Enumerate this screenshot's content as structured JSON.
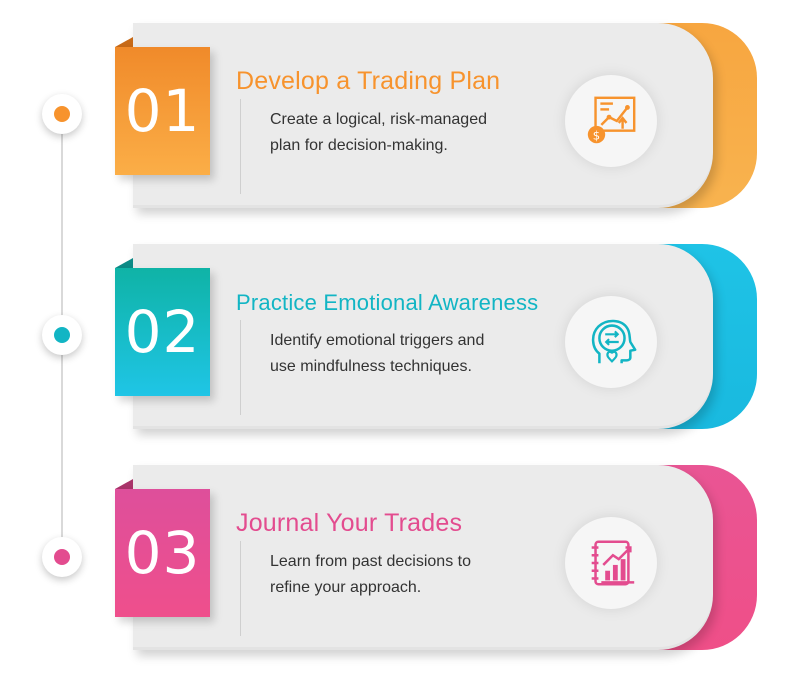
{
  "steps": [
    {
      "number": "01",
      "title": "Develop a Trading Plan",
      "description_line1": "Create a logical, risk-managed",
      "description_line2": "plan for decision-making.",
      "color": "#f7932d",
      "gradient_start": "#f08a2a",
      "gradient_end": "#fbb04a",
      "icon": "trading-plan-chart-icon"
    },
    {
      "number": "02",
      "title": "Practice Emotional Awareness",
      "description_line1": "Identify emotional triggers and",
      "description_line2": "use mindfulness techniques.",
      "color": "#12b5c4",
      "gradient_start": "#0fb3a9",
      "gradient_end": "#1cc3e2",
      "icon": "head-heart-arrows-icon"
    },
    {
      "number": "03",
      "title": "Journal Your Trades",
      "description_line1": "Learn from past decisions to",
      "description_line2": "refine your approach.",
      "color": "#e34c8f",
      "gradient_start": "#e0559e",
      "gradient_end": "#ef4d8b",
      "icon": "journal-chart-icon"
    }
  ]
}
